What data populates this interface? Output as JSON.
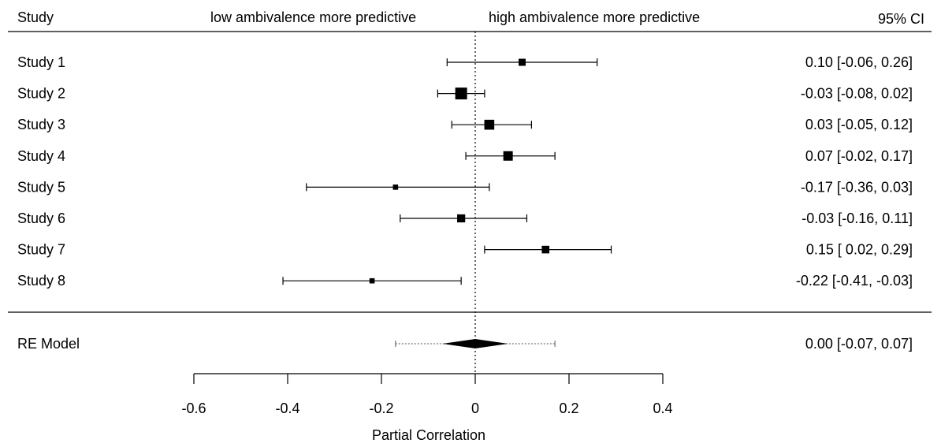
{
  "chart_data": {
    "type": "forest",
    "headers": {
      "left": "Study",
      "center_left": "low ambivalence more predictive",
      "center_right": "high ambivalence more predictive",
      "right": "95% CI"
    },
    "xlabel": "Partial Correlation",
    "xlim": [
      -0.6,
      0.4
    ],
    "xticks": [
      -0.6,
      -0.4,
      -0.2,
      0,
      0.2,
      0.4
    ],
    "xtick_labels": [
      "-0.6",
      "-0.4",
      "-0.2",
      "0",
      "0.2",
      "0.4"
    ],
    "reference_line": 0,
    "studies": [
      {
        "label": "Study 1",
        "estimate": 0.1,
        "ci_low": -0.06,
        "ci_high": 0.26,
        "weight": 0.5,
        "ci_text": "0.10 [-0.06,  0.26]"
      },
      {
        "label": "Study 2",
        "estimate": -0.03,
        "ci_low": -0.08,
        "ci_high": 0.02,
        "weight": 1.0,
        "ci_text": "-0.03 [-0.08,  0.02]"
      },
      {
        "label": "Study 3",
        "estimate": 0.03,
        "ci_low": -0.05,
        "ci_high": 0.12,
        "weight": 0.8,
        "ci_text": "0.03 [-0.05,  0.12]"
      },
      {
        "label": "Study 4",
        "estimate": 0.07,
        "ci_low": -0.02,
        "ci_high": 0.17,
        "weight": 0.75,
        "ci_text": "0.07 [-0.02,  0.17]"
      },
      {
        "label": "Study 5",
        "estimate": -0.17,
        "ci_low": -0.36,
        "ci_high": 0.03,
        "weight": 0.3,
        "ci_text": "-0.17 [-0.36,  0.03]"
      },
      {
        "label": "Study 6",
        "estimate": -0.03,
        "ci_low": -0.16,
        "ci_high": 0.11,
        "weight": 0.6,
        "ci_text": "-0.03 [-0.16,  0.11]"
      },
      {
        "label": "Study 7",
        "estimate": 0.15,
        "ci_low": 0.02,
        "ci_high": 0.29,
        "weight": 0.55,
        "ci_text": "0.15 [ 0.02,  0.29]"
      },
      {
        "label": "Study 8",
        "estimate": -0.22,
        "ci_low": -0.41,
        "ci_high": -0.03,
        "weight": 0.3,
        "ci_text": "-0.22 [-0.41, -0.03]"
      }
    ],
    "summary": {
      "label": "RE Model",
      "estimate": 0.0,
      "ci_low": -0.07,
      "ci_high": 0.07,
      "pi_low": -0.17,
      "pi_high": 0.17,
      "ci_text": "0.00 [-0.07,  0.07]"
    }
  }
}
